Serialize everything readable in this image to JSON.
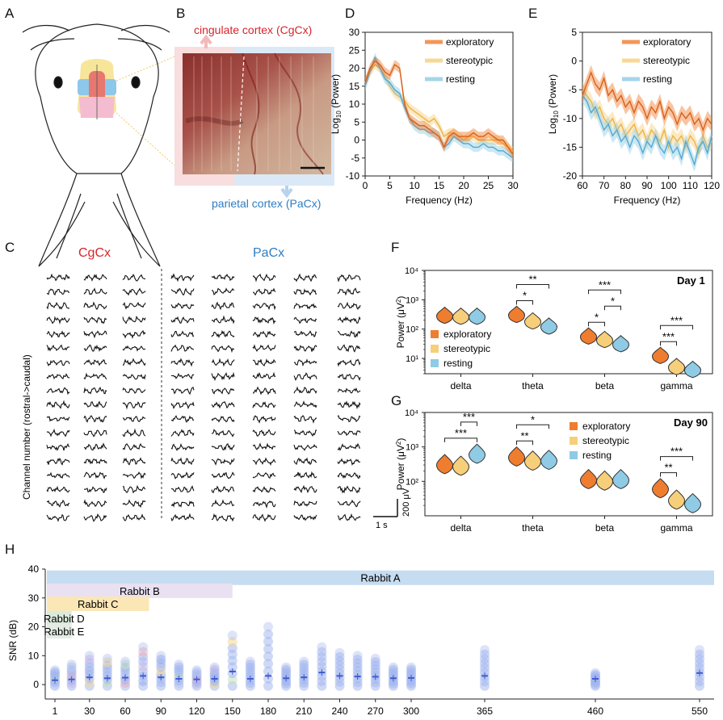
{
  "panel_labels": {
    "A": "A",
    "B": "B",
    "C": "C",
    "D": "D",
    "E": "E",
    "F": "F",
    "G": "G",
    "H": "H"
  },
  "panel_b": {
    "top_label": "cingulate cortex (CgCx)",
    "bottom_label": "parietal cortex (PaCx)",
    "colors": {
      "cgcx": "#d8242b",
      "pacx": "#2f7dc1"
    }
  },
  "panel_c": {
    "cgcx_label": "CgCx",
    "pacx_label": "PaCx",
    "ylabel": "Channel number (rostral->caudal)",
    "scale_y": "200 μV",
    "scale_x": "1 s",
    "columns": 8,
    "rows": 18
  },
  "legend": {
    "exploratory": "exploratory",
    "stereotypic": "stereotypic",
    "resting": "resting"
  },
  "colors": {
    "exploratory": "#ef7d2f",
    "stereotypic": "#f7cf7a",
    "resting": "#8fcbe5"
  },
  "chart_data": [
    {
      "id": "D",
      "type": "line",
      "xlabel": "Frequency (Hz)",
      "ylabel": "Log10 (Power)",
      "ylabel_main": "Log",
      "ylabel_sub": "10",
      "ylabel_rest": " (Power)",
      "xlim": [
        0,
        30
      ],
      "ylim": [
        -10,
        30
      ],
      "xticks": [
        "0",
        "5",
        "10",
        "15",
        "20",
        "25",
        "30"
      ],
      "yticks": [
        "-10",
        "-5",
        "0",
        "5",
        "10",
        "15",
        "20",
        "25",
        "30"
      ],
      "x": [
        0,
        1,
        2,
        3,
        4,
        5,
        6,
        7,
        8,
        9,
        10,
        11,
        12,
        13,
        14,
        15,
        16,
        17,
        18,
        19,
        20,
        21,
        22,
        23,
        24,
        25,
        26,
        27,
        28,
        29,
        30
      ],
      "series": [
        {
          "name": "exploratory",
          "values": [
            16,
            20,
            22,
            21,
            19,
            18,
            21,
            20,
            10,
            6,
            5,
            4,
            4,
            3,
            2,
            1,
            -2,
            1,
            2,
            1,
            1,
            1,
            2,
            1,
            1,
            2,
            1,
            0,
            0,
            -2,
            -4
          ]
        },
        {
          "name": "stereotypic",
          "values": [
            16,
            19,
            21,
            20,
            18,
            15,
            13,
            12,
            11,
            9,
            8,
            7,
            6,
            5,
            6,
            4,
            1,
            2,
            2,
            1,
            0,
            1,
            1,
            0,
            0,
            0,
            0,
            0,
            -1,
            -2,
            -3
          ]
        },
        {
          "name": "resting",
          "values": [
            15,
            19,
            23,
            20,
            17,
            16,
            14,
            13,
            9,
            6,
            4,
            3,
            3,
            2,
            2,
            1,
            -2,
            -1,
            1,
            0,
            -1,
            -1,
            -2,
            -2,
            -1,
            -2,
            -2,
            -3,
            -3,
            -4,
            -5
          ]
        }
      ]
    },
    {
      "id": "E",
      "type": "line",
      "xlabel": "Frequency (Hz)",
      "ylabel": "Log10 (Power)",
      "ylabel_main": "Log",
      "ylabel_sub": "10",
      "ylabel_rest": " (Power)",
      "xlim": [
        60,
        120
      ],
      "ylim": [
        -20,
        5
      ],
      "xticks": [
        "60",
        "70",
        "80",
        "90",
        "100",
        "110",
        "120"
      ],
      "yticks": [
        "-20",
        "-15",
        "-10",
        "-5",
        "0",
        "5"
      ],
      "x": [
        60,
        62,
        64,
        66,
        68,
        70,
        72,
        74,
        76,
        78,
        80,
        82,
        84,
        86,
        88,
        90,
        92,
        94,
        96,
        98,
        100,
        102,
        104,
        106,
        108,
        110,
        112,
        114,
        116,
        118,
        120
      ],
      "series": [
        {
          "name": "exploratory",
          "values": [
            -6,
            -4,
            -2,
            -4,
            -5,
            -3,
            -6,
            -5,
            -7,
            -6,
            -8,
            -7,
            -9,
            -7,
            -8,
            -10,
            -8,
            -9,
            -7,
            -10,
            -8,
            -9,
            -11,
            -9,
            -10,
            -9,
            -11,
            -10,
            -12,
            -10,
            -11
          ]
        },
        {
          "name": "stereotypic",
          "values": [
            -5,
            -6,
            -7,
            -9,
            -8,
            -10,
            -11,
            -10,
            -12,
            -11,
            -13,
            -12,
            -11,
            -13,
            -12,
            -14,
            -12,
            -13,
            -14,
            -12,
            -15,
            -13,
            -14,
            -13,
            -15,
            -13,
            -14,
            -16,
            -13,
            -15,
            -14
          ]
        },
        {
          "name": "resting",
          "values": [
            -6,
            -7,
            -9,
            -8,
            -10,
            -12,
            -11,
            -13,
            -12,
            -14,
            -13,
            -15,
            -13,
            -14,
            -16,
            -14,
            -15,
            -13,
            -15,
            -16,
            -14,
            -16,
            -15,
            -17,
            -14,
            -16,
            -18,
            -15,
            -14,
            -16,
            -13
          ]
        }
      ]
    },
    {
      "id": "F",
      "type": "violin",
      "title": "Day 1",
      "ylabel": "Power (μV²)",
      "ylabel_main": "Power (μV",
      "ylabel_sup": "2",
      "ylabel_end": ")",
      "yscale": "log",
      "ylim": [
        3,
        10000
      ],
      "yticks": [
        "10¹",
        "10²",
        "10³",
        "10⁴"
      ],
      "categories": [
        "delta",
        "theta",
        "beta",
        "gamma"
      ],
      "series": [
        {
          "name": "exploratory",
          "values": [
            280,
            300,
            55,
            12
          ]
        },
        {
          "name": "stereotypic",
          "values": [
            260,
            180,
            42,
            5
          ]
        },
        {
          "name": "resting",
          "values": [
            260,
            120,
            30,
            4
          ]
        }
      ],
      "significance": [
        {
          "category": "theta",
          "a": 0,
          "b": 1,
          "label": "*"
        },
        {
          "category": "theta",
          "a": 0,
          "b": 2,
          "label": "**"
        },
        {
          "category": "beta",
          "a": 0,
          "b": 1,
          "label": "*"
        },
        {
          "category": "beta",
          "a": 1,
          "b": 2,
          "label": "*"
        },
        {
          "category": "beta",
          "a": 0,
          "b": 2,
          "label": "***"
        },
        {
          "category": "gamma",
          "a": 0,
          "b": 1,
          "label": "***"
        },
        {
          "category": "gamma",
          "a": 0,
          "b": 2,
          "label": "***"
        }
      ]
    },
    {
      "id": "G",
      "type": "violin",
      "title": "Day 90",
      "ylabel": "Power (μV²)",
      "ylabel_main": "Power (μV",
      "ylabel_sup": "2",
      "ylabel_end": ")",
      "yscale": "log",
      "ylim": [
        10,
        10000
      ],
      "yticks": [
        "10²",
        "10³",
        "10⁴"
      ],
      "categories": [
        "delta",
        "theta",
        "beta",
        "gamma"
      ],
      "series": [
        {
          "name": "exploratory",
          "values": [
            300,
            500,
            110,
            60
          ]
        },
        {
          "name": "stereotypic",
          "values": [
            270,
            380,
            100,
            28
          ]
        },
        {
          "name": "resting",
          "values": [
            600,
            400,
            110,
            22
          ]
        }
      ],
      "significance": [
        {
          "category": "delta",
          "a": 0,
          "b": 2,
          "label": "***"
        },
        {
          "category": "delta",
          "a": 1,
          "b": 2,
          "label": "***"
        },
        {
          "category": "theta",
          "a": 0,
          "b": 1,
          "label": "**"
        },
        {
          "category": "theta",
          "a": 0,
          "b": 2,
          "label": "*"
        },
        {
          "category": "gamma",
          "a": 0,
          "b": 1,
          "label": "**"
        },
        {
          "category": "gamma",
          "a": 0,
          "b": 2,
          "label": "***"
        }
      ]
    },
    {
      "id": "H",
      "type": "scatter",
      "ylabel": "SNR (dB)",
      "ylim": [
        -5,
        40
      ],
      "yticks": [
        "0",
        "10",
        "20",
        "30",
        "40"
      ],
      "xticks": [
        "1",
        "30",
        "60",
        "90",
        "120",
        "150",
        "180",
        "210",
        "240",
        "270",
        "300",
        "365",
        "460",
        "550"
      ],
      "days": [
        1,
        15,
        30,
        45,
        60,
        75,
        90,
        105,
        120,
        135,
        150,
        165,
        180,
        195,
        210,
        225,
        240,
        255,
        270,
        285,
        300,
        365,
        460,
        550
      ],
      "max_snr": [
        5,
        7,
        10,
        9,
        8,
        13,
        10,
        7,
        5,
        6,
        17,
        8,
        20,
        6,
        8,
        13,
        11,
        10,
        9,
        6,
        6,
        12,
        4,
        12
      ],
      "means": [
        1.5,
        1.8,
        2.5,
        2.2,
        2.4,
        3,
        2.5,
        2,
        1.8,
        2,
        4.5,
        2,
        3,
        2.2,
        2.5,
        4.2,
        3,
        2.8,
        2.7,
        2.2,
        2.3,
        3,
        2,
        4
      ],
      "rabbits": [
        {
          "name": "Rabbit A",
          "start": 1,
          "end": 550,
          "snr_level": 37,
          "color": "#c6dcf1"
        },
        {
          "name": "Rabbit B",
          "start": 1,
          "end": 150,
          "snr_level": 32.5,
          "color": "#e9e0f2"
        },
        {
          "name": "Rabbit C",
          "start": 1,
          "end": 80,
          "snr_level": 28,
          "color": "#fbe7b6"
        },
        {
          "name": "Rabbit D",
          "start": 1,
          "end": 15,
          "snr_level": 23,
          "color": "#dbeadb"
        },
        {
          "name": "Rabbit E",
          "start": 1,
          "end": 15,
          "snr_level": 18.5,
          "color": "#e3ebe3"
        }
      ]
    }
  ]
}
